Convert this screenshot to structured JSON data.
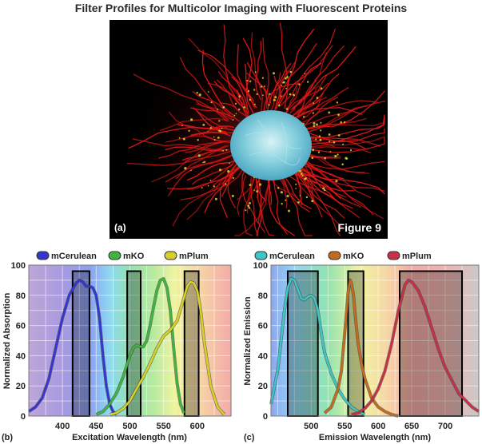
{
  "page_title": "Filter Profiles for Multicolor Imaging with Fluorescent Proteins",
  "figure": {
    "panel_label": "(a)",
    "figure_label": "Figure 9"
  },
  "colors": {
    "mCerulean_b": "#3535d0",
    "mKO_b": "#3fb43f",
    "mPlum_b": "#d8d02a",
    "mCerulean_c": "#3ec6c6",
    "mKO_c": "#c46a1e",
    "mPlum_c": "#c8304a"
  },
  "chart_data": [
    {
      "type": "line",
      "panel_label": "(b)",
      "xlabel": "Excitation Wavelength (nm)",
      "ylabel": "Normalized Absorption",
      "xlim": [
        350,
        650
      ],
      "ylim": [
        0,
        100
      ],
      "x_ticks": [
        400,
        450,
        500,
        550,
        600
      ],
      "y_ticks": [
        0,
        20,
        40,
        60,
        80,
        100
      ],
      "grid": true,
      "legend_position": "top",
      "series": [
        {
          "name": "mCerulean",
          "color_key": "mCerulean_b",
          "x": [
            350,
            360,
            370,
            380,
            390,
            400,
            410,
            420,
            425,
            430,
            435,
            440,
            445,
            450,
            455,
            460,
            465,
            470,
            475,
            480
          ],
          "y": [
            3,
            6,
            12,
            25,
            45,
            65,
            80,
            88,
            90,
            89,
            86,
            86,
            85,
            80,
            65,
            40,
            20,
            8,
            3,
            1
          ]
        },
        {
          "name": "mKO",
          "color_key": "mKO_b",
          "x": [
            450,
            460,
            470,
            480,
            490,
            500,
            505,
            510,
            515,
            520,
            525,
            530,
            535,
            540,
            545,
            550,
            555,
            560,
            565,
            570,
            575,
            580
          ],
          "y": [
            1,
            3,
            8,
            15,
            26,
            40,
            45,
            47,
            46,
            46,
            50,
            60,
            72,
            83,
            90,
            91,
            85,
            70,
            45,
            22,
            8,
            2
          ]
        },
        {
          "name": "mPlum",
          "color_key": "mPlum_b",
          "x": [
            470,
            480,
            490,
            500,
            510,
            520,
            530,
            540,
            550,
            560,
            570,
            580,
            585,
            590,
            595,
            600,
            605,
            610,
            620,
            630,
            640
          ],
          "y": [
            1,
            2,
            5,
            10,
            18,
            26,
            35,
            45,
            53,
            57,
            63,
            78,
            86,
            89,
            88,
            83,
            70,
            50,
            20,
            6,
            1
          ]
        }
      ],
      "filter_bands": [
        [
          415,
          440
        ],
        [
          496,
          516
        ],
        [
          581,
          602
        ]
      ]
    },
    {
      "type": "line",
      "panel_label": "(c)",
      "xlabel": "Emission Wavelength (nm)",
      "ylabel": "Normalized Emission",
      "xlim": [
        440,
        750
      ],
      "ylim": [
        0,
        100
      ],
      "x_ticks": [
        500,
        550,
        600,
        650,
        700
      ],
      "y_ticks": [
        0,
        20,
        40,
        60,
        80,
        100
      ],
      "grid": true,
      "legend_position": "top",
      "series": [
        {
          "name": "mCerulean",
          "color_key": "mCerulean_c",
          "x": [
            440,
            450,
            460,
            465,
            470,
            475,
            480,
            485,
            490,
            495,
            500,
            505,
            510,
            515,
            520,
            530,
            540,
            550,
            560,
            570,
            580
          ],
          "y": [
            8,
            30,
            70,
            85,
            91,
            90,
            84,
            78,
            77,
            79,
            80,
            78,
            70,
            55,
            42,
            28,
            18,
            11,
            6,
            3,
            1
          ]
        },
        {
          "name": "mKO",
          "color_key": "mKO_c",
          "x": [
            520,
            530,
            540,
            545,
            550,
            555,
            558,
            560,
            563,
            566,
            570,
            575,
            580,
            590,
            600,
            610,
            620,
            630
          ],
          "y": [
            2,
            6,
            18,
            30,
            55,
            82,
            90,
            88,
            80,
            65,
            48,
            35,
            25,
            12,
            6,
            3,
            1,
            0
          ]
        },
        {
          "name": "mPlum",
          "color_key": "mPlum_c",
          "x": [
            560,
            570,
            580,
            590,
            600,
            610,
            620,
            630,
            640,
            645,
            650,
            660,
            670,
            680,
            690,
            700,
            720,
            740,
            750
          ],
          "y": [
            1,
            2,
            5,
            10,
            18,
            30,
            48,
            70,
            87,
            90,
            89,
            83,
            72,
            58,
            44,
            32,
            15,
            6,
            3
          ]
        }
      ],
      "filter_bands": [
        [
          465,
          510
        ],
        [
          555,
          578
        ],
        [
          632,
          725
        ]
      ]
    }
  ]
}
